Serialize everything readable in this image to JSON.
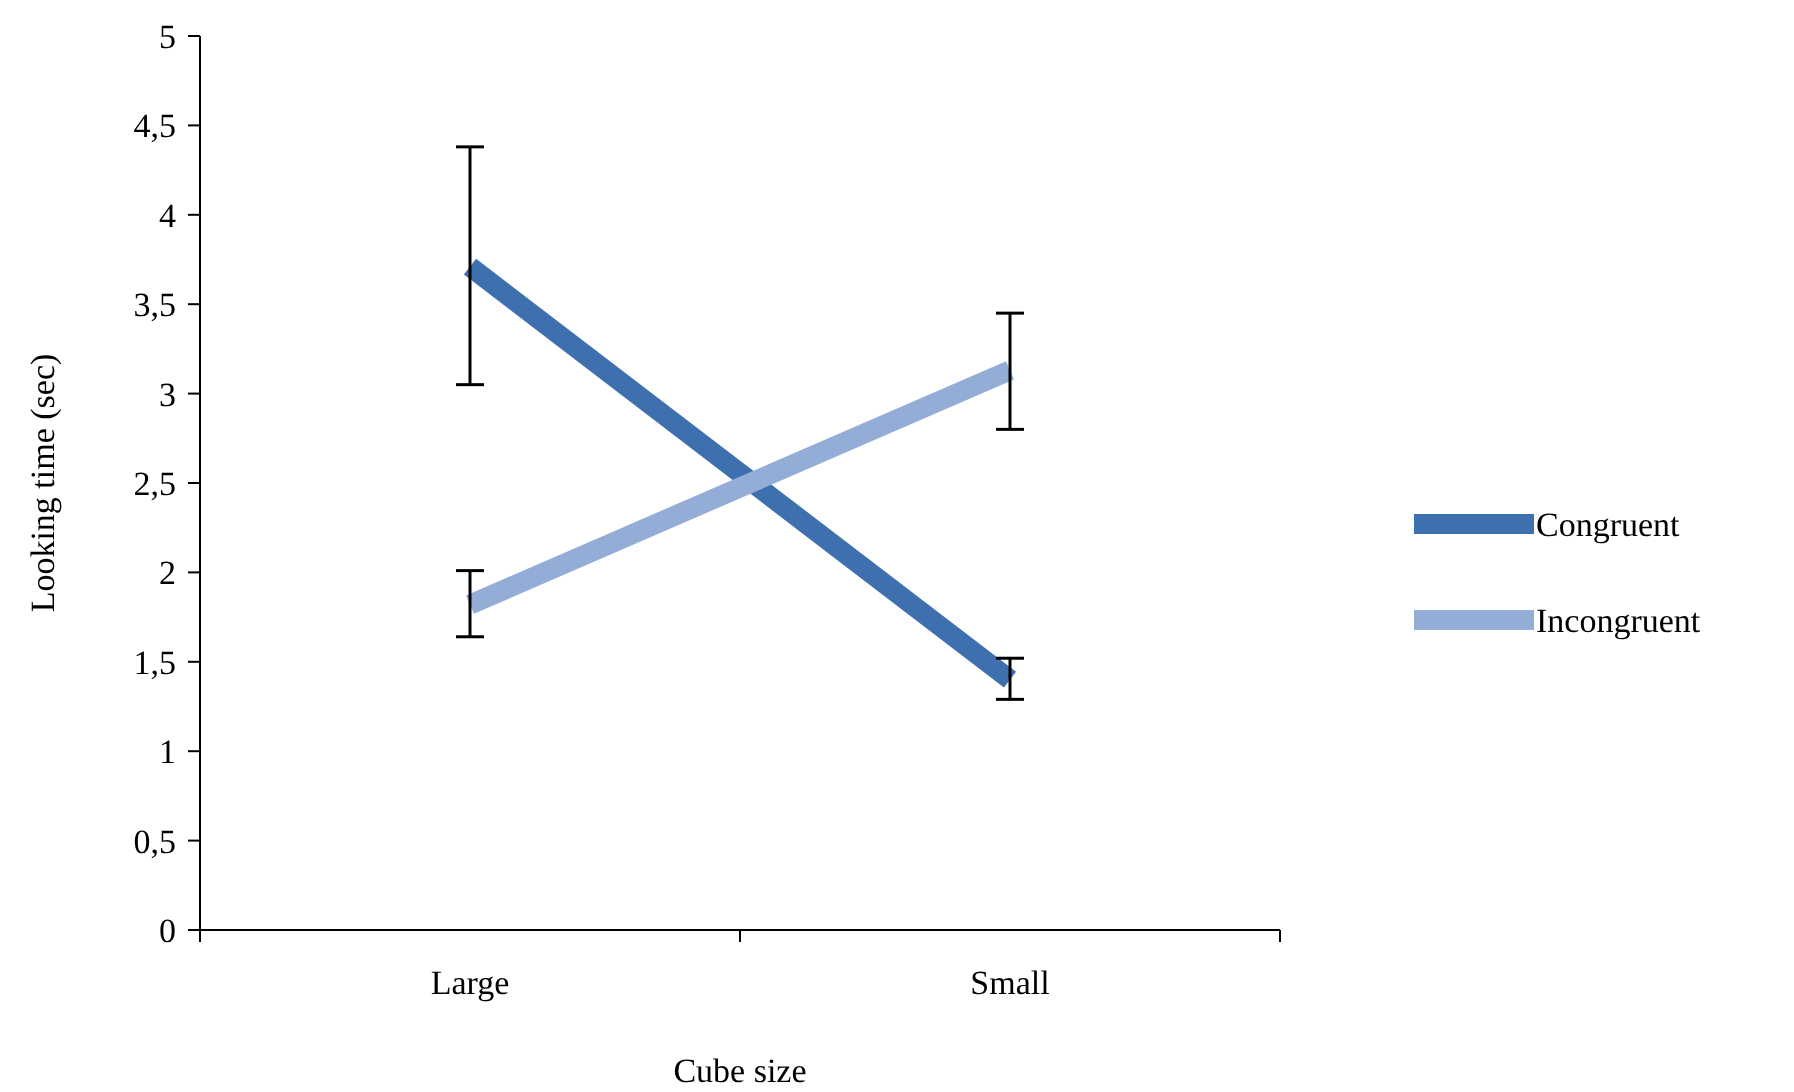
{
  "chart_data": {
    "type": "line",
    "xlabel": "Cube size",
    "ylabel": "Looking time (sec)",
    "categories": [
      "Large",
      "Small"
    ],
    "series": [
      {
        "name": "Congruent",
        "color": "#3e6fae",
        "values": [
          3.71,
          1.4
        ],
        "errors": [
          [
            3.05,
            4.38
          ],
          [
            1.29,
            1.52
          ]
        ]
      },
      {
        "name": "Incongruent",
        "color": "#94add7",
        "values": [
          1.82,
          3.13
        ],
        "errors": [
          [
            1.64,
            2.01
          ],
          [
            2.8,
            3.45
          ]
        ]
      }
    ],
    "ylim": [
      0,
      5
    ],
    "yticks": [
      0,
      {
        "value": 0.5,
        "label": "0,5"
      },
      1,
      {
        "value": 1.5,
        "label": "1,5"
      },
      2,
      {
        "value": 2.5,
        "label": "2,5"
      },
      3,
      {
        "value": 3.5,
        "label": "3,5"
      },
      4,
      {
        "value": 4.5,
        "label": "4,5"
      },
      5
    ],
    "grid": false,
    "legend": "right",
    "marker": "none",
    "line_style": "solid"
  }
}
